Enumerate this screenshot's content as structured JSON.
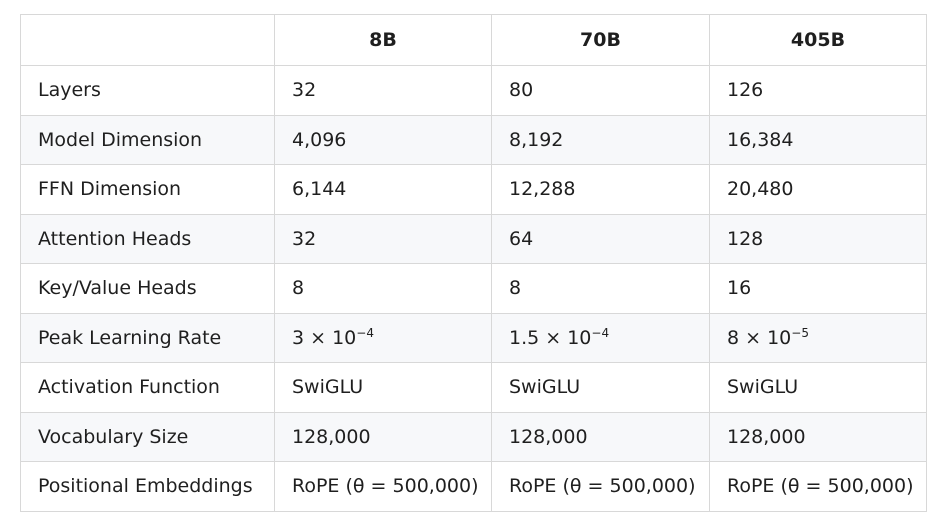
{
  "table": {
    "headers": [
      "",
      "8B",
      "70B",
      "405B"
    ],
    "rows": [
      {
        "label": "Layers",
        "cells": [
          {
            "text": "32"
          },
          {
            "text": "80"
          },
          {
            "text": "126"
          }
        ]
      },
      {
        "label": "Model Dimension",
        "cells": [
          {
            "text": "4,096"
          },
          {
            "text": "8,192"
          },
          {
            "text": "16,384"
          }
        ]
      },
      {
        "label": "FFN Dimension",
        "cells": [
          {
            "text": "6,144"
          },
          {
            "text": "12,288"
          },
          {
            "text": "20,480"
          }
        ]
      },
      {
        "label": "Attention Heads",
        "cells": [
          {
            "text": "32"
          },
          {
            "text": "64"
          },
          {
            "text": "128"
          }
        ]
      },
      {
        "label": "Key/Value Heads",
        "cells": [
          {
            "text": "8"
          },
          {
            "text": "8"
          },
          {
            "text": "16"
          }
        ]
      },
      {
        "label": "Peak Learning Rate",
        "cells": [
          {
            "text": "3 × 10",
            "sup": "−4"
          },
          {
            "text": "1.5 × 10",
            "sup": "−4"
          },
          {
            "text": "8 × 10",
            "sup": "−5"
          }
        ]
      },
      {
        "label": "Activation Function",
        "cells": [
          {
            "text": "SwiGLU"
          },
          {
            "text": "SwiGLU"
          },
          {
            "text": "SwiGLU"
          }
        ]
      },
      {
        "label": "Vocabulary Size",
        "cells": [
          {
            "text": "128,000"
          },
          {
            "text": "128,000"
          },
          {
            "text": "128,000"
          }
        ]
      },
      {
        "label": "Positional Embeddings",
        "cells": [
          {
            "text": "RoPE (θ = 500,000)"
          },
          {
            "text": "RoPE (θ = 500,000)"
          },
          {
            "text": "RoPE (θ = 500,000)"
          }
        ]
      }
    ]
  }
}
